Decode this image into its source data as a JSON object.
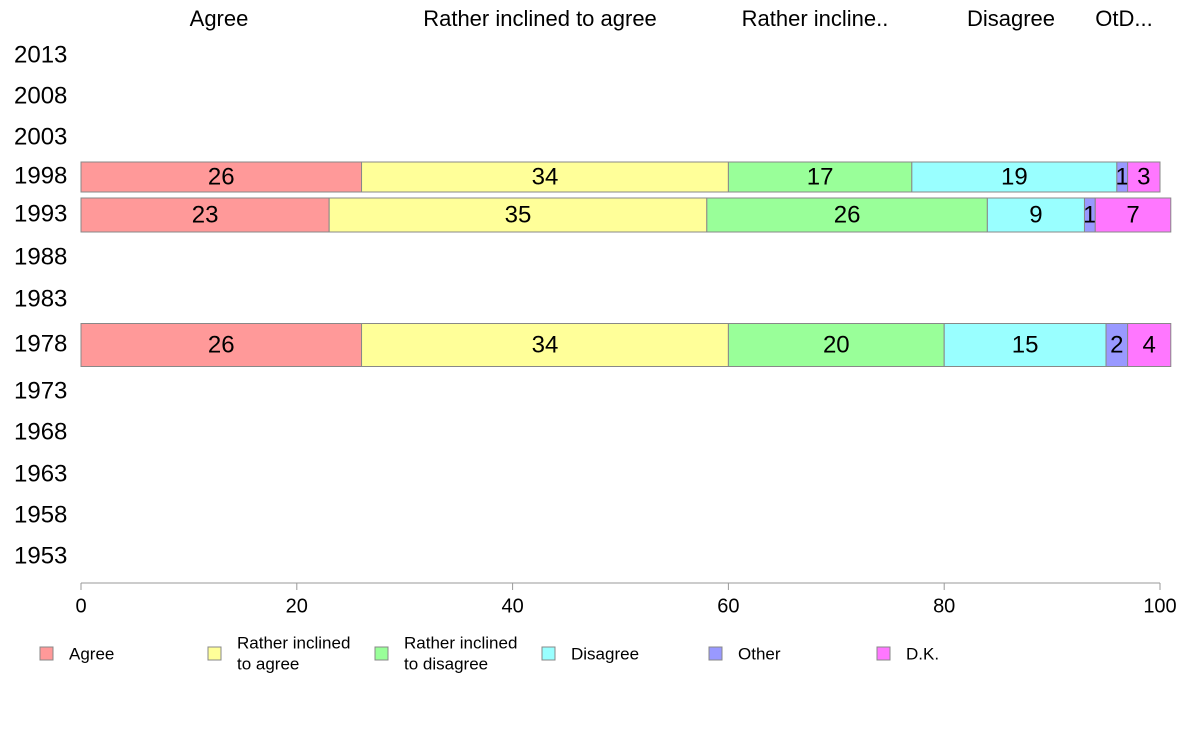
{
  "chart_data": {
    "type": "bar",
    "orientation": "horizontal",
    "stacked": true,
    "column_headers": [
      "Agree",
      "Rather inclined to agree",
      "Rather incline..",
      "Disagree",
      "OtD..."
    ],
    "categories": [
      "2013",
      "2008",
      "2003",
      "1998",
      "1993",
      "1988",
      "1983",
      "1978",
      "1973",
      "1968",
      "1963",
      "1958",
      "1953"
    ],
    "series": [
      {
        "name": "Agree",
        "color": "#ff9999",
        "values": [
          null,
          null,
          null,
          26,
          23,
          null,
          null,
          26,
          null,
          null,
          null,
          null,
          null
        ],
        "legend_lines": [
          "Agree"
        ]
      },
      {
        "name": "Rather inclined to agree",
        "color": "#ffff99",
        "values": [
          null,
          null,
          null,
          34,
          35,
          null,
          null,
          34,
          null,
          null,
          null,
          null,
          null
        ],
        "legend_lines": [
          "Rather inclined",
          "to agree"
        ]
      },
      {
        "name": "Rather inclined to disagree",
        "color": "#99ff99",
        "values": [
          null,
          null,
          null,
          17,
          26,
          null,
          null,
          20,
          null,
          null,
          null,
          null,
          null
        ],
        "legend_lines": [
          "Rather inclined",
          "to disagree"
        ]
      },
      {
        "name": "Disagree",
        "color": "#99ffff",
        "values": [
          null,
          null,
          null,
          19,
          9,
          null,
          null,
          15,
          null,
          null,
          null,
          null,
          null
        ],
        "legend_lines": [
          "Disagree"
        ]
      },
      {
        "name": "Other",
        "color": "#9999ff",
        "values": [
          null,
          null,
          null,
          1,
          1,
          null,
          null,
          2,
          null,
          null,
          null,
          null,
          null
        ],
        "legend_lines": [
          "Other"
        ]
      },
      {
        "name": "D.K.",
        "color": "#ff77ff",
        "values": [
          null,
          null,
          null,
          3,
          7,
          null,
          null,
          4,
          null,
          null,
          null,
          null,
          null
        ],
        "legend_lines": [
          "D.K."
        ]
      }
    ],
    "xlim": [
      0,
      100
    ],
    "xticks": [
      "0",
      "20",
      "40",
      "60",
      "80",
      "100"
    ],
    "grid": false,
    "legend_position": "bottom"
  }
}
